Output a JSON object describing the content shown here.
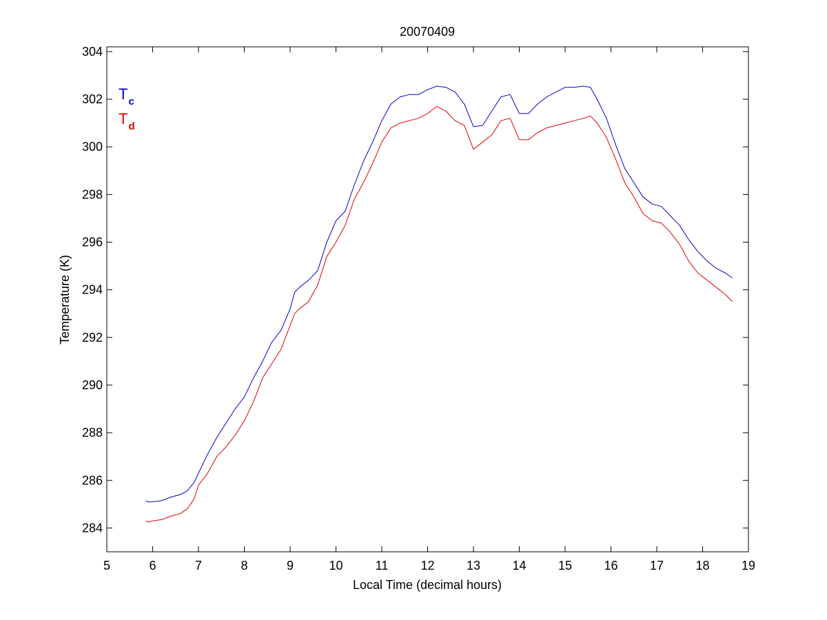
{
  "chart_data": {
    "type": "line",
    "title": "20070409",
    "xlabel": "Local Time (decimal hours)",
    "ylabel": "Temperature (K)",
    "xlim": [
      5,
      19
    ],
    "ylim": [
      283,
      304.2
    ],
    "xticks": [
      5,
      6,
      7,
      8,
      9,
      10,
      11,
      12,
      13,
      14,
      15,
      16,
      17,
      18,
      19
    ],
    "yticks": [
      284,
      286,
      288,
      290,
      292,
      294,
      296,
      298,
      300,
      302,
      304
    ],
    "grid": false,
    "legend_placement": "top-left",
    "series": [
      {
        "name": "Tc",
        "label_main": "T",
        "label_sub": "c",
        "color": "#0000cc",
        "x": [
          5.85,
          5.9,
          6.0,
          6.2,
          6.4,
          6.6,
          6.75,
          6.9,
          7.0,
          7.2,
          7.4,
          7.6,
          7.8,
          8.0,
          8.2,
          8.4,
          8.6,
          8.8,
          9.0,
          9.1,
          9.2,
          9.4,
          9.6,
          9.8,
          10.0,
          10.2,
          10.4,
          10.6,
          10.8,
          11.0,
          11.2,
          11.4,
          11.6,
          11.8,
          12.0,
          12.2,
          12.4,
          12.6,
          12.8,
          13.0,
          13.2,
          13.4,
          13.6,
          13.8,
          14.0,
          14.2,
          14.4,
          14.6,
          14.8,
          15.0,
          15.2,
          15.4,
          15.55,
          15.7,
          15.9,
          16.1,
          16.3,
          16.5,
          16.7,
          16.9,
          17.1,
          17.3,
          17.5,
          17.7,
          17.9,
          18.1,
          18.3,
          18.5,
          18.65
        ],
        "y": [
          285.15,
          285.1,
          285.1,
          285.15,
          285.3,
          285.4,
          285.55,
          285.9,
          286.3,
          287.1,
          287.8,
          288.4,
          289.0,
          289.5,
          290.3,
          291.0,
          291.8,
          292.3,
          293.2,
          293.9,
          294.1,
          294.4,
          294.8,
          296.0,
          296.9,
          297.3,
          298.4,
          299.4,
          300.2,
          301.1,
          301.8,
          302.1,
          302.2,
          302.2,
          302.4,
          302.55,
          302.5,
          302.3,
          301.8,
          300.85,
          300.9,
          301.5,
          302.1,
          302.2,
          301.4,
          301.4,
          301.8,
          302.1,
          302.3,
          302.5,
          302.5,
          302.55,
          302.5,
          302.0,
          301.2,
          300.1,
          299.1,
          298.5,
          297.9,
          297.6,
          297.5,
          297.1,
          296.7,
          296.1,
          295.6,
          295.2,
          294.9,
          294.7,
          294.5
        ]
      },
      {
        "name": "Td",
        "label_main": "T",
        "label_sub": "d",
        "color": "#dd0000",
        "x": [
          5.85,
          5.9,
          6.0,
          6.2,
          6.4,
          6.6,
          6.75,
          6.9,
          7.0,
          7.2,
          7.4,
          7.6,
          7.8,
          8.0,
          8.2,
          8.4,
          8.6,
          8.8,
          9.0,
          9.1,
          9.2,
          9.4,
          9.6,
          9.8,
          10.0,
          10.2,
          10.4,
          10.6,
          10.8,
          11.0,
          11.2,
          11.4,
          11.6,
          11.8,
          12.0,
          12.2,
          12.4,
          12.6,
          12.8,
          13.0,
          13.2,
          13.4,
          13.6,
          13.8,
          14.0,
          14.2,
          14.4,
          14.6,
          14.8,
          15.0,
          15.2,
          15.4,
          15.55,
          15.7,
          15.9,
          16.1,
          16.3,
          16.5,
          16.7,
          16.9,
          17.1,
          17.3,
          17.5,
          17.7,
          17.9,
          18.1,
          18.3,
          18.5,
          18.65
        ],
        "y": [
          284.3,
          284.25,
          284.3,
          284.35,
          284.5,
          284.6,
          284.8,
          285.2,
          285.8,
          286.3,
          287.0,
          287.4,
          287.9,
          288.5,
          289.3,
          290.3,
          290.9,
          291.5,
          292.5,
          293.0,
          293.2,
          293.5,
          294.2,
          295.4,
          296.0,
          296.7,
          297.8,
          298.5,
          299.3,
          300.2,
          300.8,
          301.0,
          301.1,
          301.2,
          301.4,
          301.7,
          301.5,
          301.1,
          300.9,
          299.9,
          300.2,
          300.5,
          301.1,
          301.2,
          300.3,
          300.3,
          300.6,
          300.8,
          300.9,
          301.0,
          301.1,
          301.2,
          301.3,
          301.0,
          300.4,
          299.5,
          298.5,
          297.9,
          297.2,
          296.9,
          296.8,
          296.4,
          295.9,
          295.2,
          294.7,
          294.4,
          294.1,
          293.8,
          293.5
        ]
      }
    ]
  }
}
